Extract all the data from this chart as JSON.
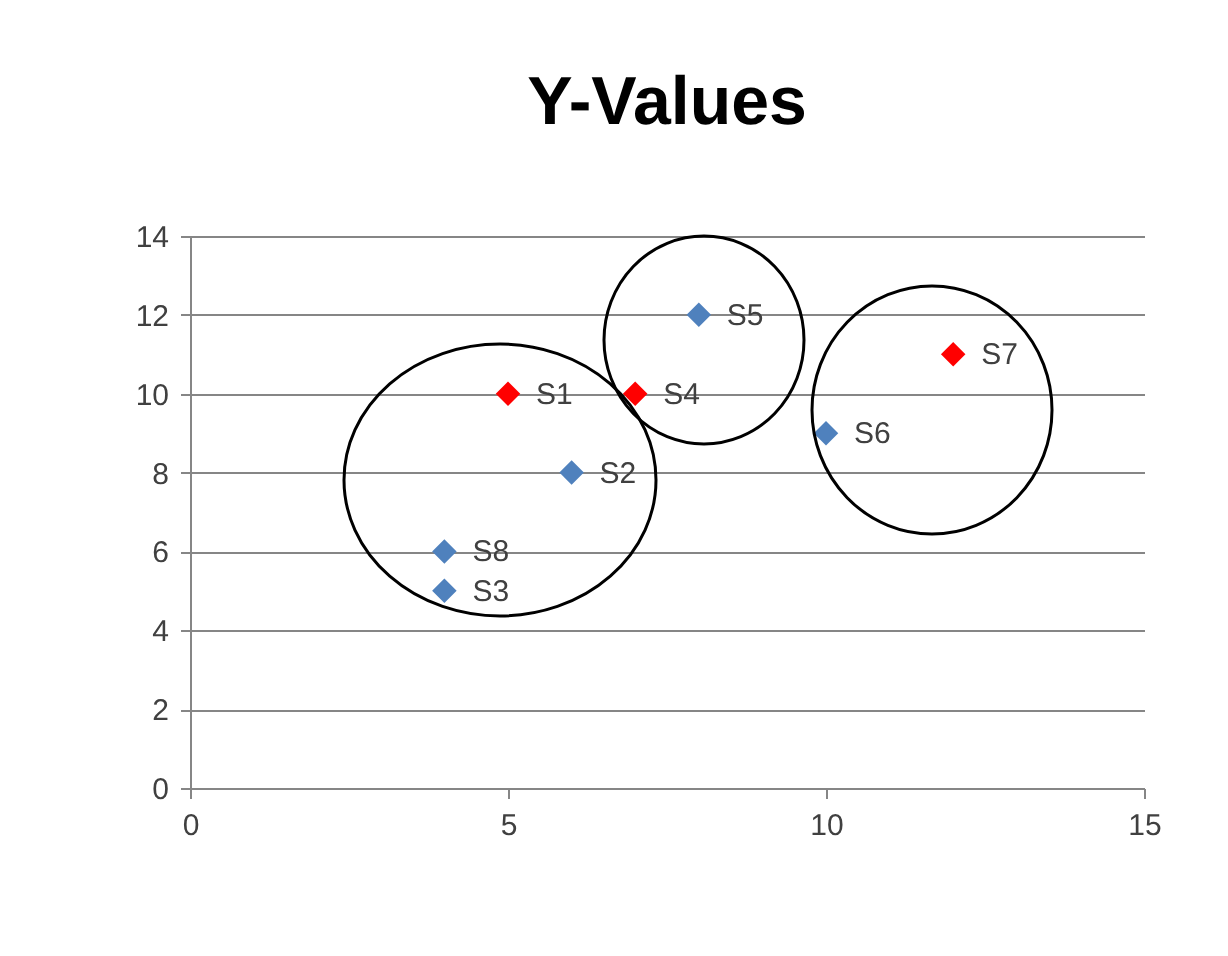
{
  "chart_data": {
    "type": "scatter",
    "title": "Y-Values",
    "xlim": [
      0,
      15
    ],
    "xticks": [
      0,
      5,
      10,
      15
    ],
    "ylim": [
      0,
      14
    ],
    "yticks": [
      0,
      2,
      4,
      6,
      8,
      10,
      12,
      14
    ],
    "grid": "y",
    "marker": "diamond",
    "legend": false,
    "series": [
      {
        "color": "#4f81bd",
        "x": [
          6,
          4,
          8,
          10,
          4
        ],
        "values": [
          8,
          5,
          12,
          9,
          6
        ],
        "value_labels": [
          "S2",
          "S3",
          "S5",
          "S6",
          "S8"
        ]
      },
      {
        "color": "#ff0000",
        "x": [
          5,
          7,
          12
        ],
        "values": [
          10,
          10,
          11
        ],
        "value_labels": [
          "S1",
          "S4",
          "S7"
        ]
      }
    ]
  }
}
